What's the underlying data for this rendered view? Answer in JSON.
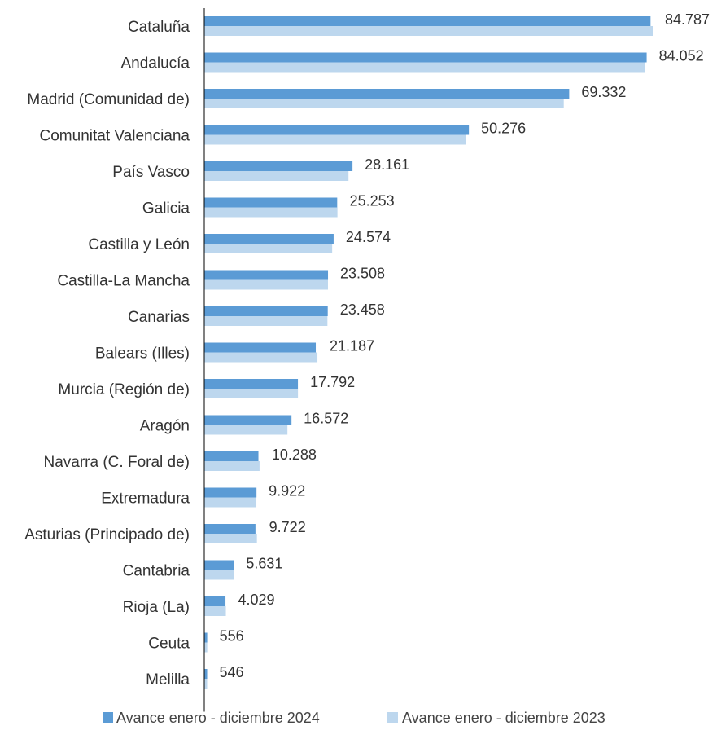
{
  "chart_data": {
    "type": "bar",
    "orientation": "horizontal",
    "categories": [
      "Cataluña",
      "Andalucía",
      "Madrid (Comunidad de)",
      "Comunitat Valenciana",
      "País Vasco",
      "Galicia",
      "Castilla y León",
      "Castilla-La Mancha",
      "Canarias",
      "Balears (Illes)",
      "Murcia (Región de)",
      "Aragón",
      "Navarra (C. Foral de)",
      "Extremadura",
      "Asturias (Principado de)",
      "Cantabria",
      "Rioja (La)",
      "Ceuta",
      "Melilla"
    ],
    "series": [
      {
        "name": "Avance enero - diciembre 2024",
        "color": "#5b9bd5",
        "values": [
          84787,
          84052,
          69332,
          50276,
          28161,
          25253,
          24574,
          23508,
          23458,
          21187,
          17792,
          16572,
          10288,
          9922,
          9722,
          5631,
          4029,
          556,
          546
        ],
        "labels": [
          "84.787",
          "84.052",
          "69.332",
          "50.276",
          "28.161",
          "25.253",
          "24.574",
          "23.508",
          "23.458",
          "21.187",
          "17.792",
          "16.572",
          "10.288",
          "9.922",
          "9.722",
          "5.631",
          "4.029",
          "556",
          "546"
        ]
      },
      {
        "name": "Avance enero - diciembre 2023",
        "color": "#bdd7ee",
        "values": [
          85200,
          83800,
          68300,
          49700,
          27400,
          25300,
          24300,
          23500,
          23400,
          21500,
          17800,
          15800,
          10500,
          9900,
          10000,
          5600,
          4100,
          560,
          540
        ]
      }
    ],
    "xlim": [
      0,
      95000
    ],
    "grid": false,
    "legend_position": "bottom"
  }
}
